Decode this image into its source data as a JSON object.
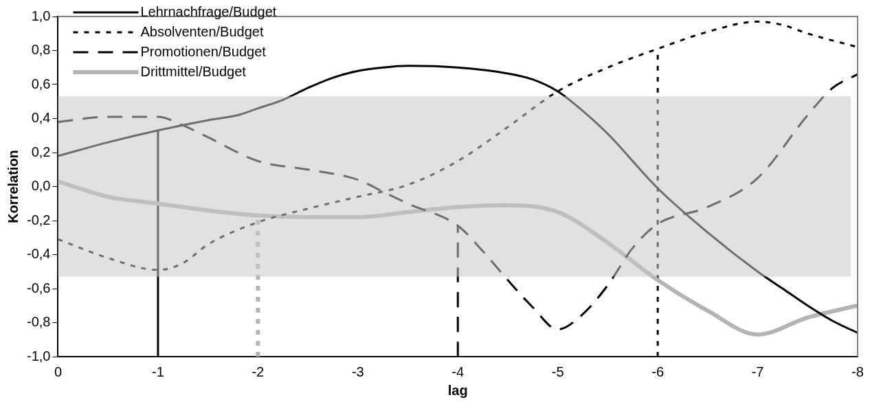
{
  "chart_data": {
    "type": "line",
    "xlabel": "lag",
    "ylabel": "Korrelation",
    "xlim": [
      0,
      -8
    ],
    "xticks": [
      0,
      -1,
      -2,
      -3,
      -4,
      -5,
      -6,
      -7,
      -8
    ],
    "ylim": [
      -1,
      1
    ],
    "yticks": [
      {
        "value": -1,
        "label": "-1,0"
      },
      {
        "value": -0.8,
        "label": "-0,8"
      },
      {
        "value": -0.6,
        "label": "-0,6"
      },
      {
        "value": -0.4,
        "label": "-0,4"
      },
      {
        "value": -0.2,
        "label": "-0,2"
      },
      {
        "value": 0,
        "label": "0,0"
      },
      {
        "value": 0.2,
        "label": "0,2"
      },
      {
        "value": 0.4,
        "label": "0,4"
      },
      {
        "value": 0.6,
        "label": "0,6"
      },
      {
        "value": 0.8,
        "label": "0,8"
      },
      {
        "value": 1,
        "label": "1,0"
      }
    ],
    "grid": false,
    "legend": "top left",
    "marker": "none",
    "bands": [
      {
        "axis": "y",
        "from": -0.53,
        "to": 0.53,
        "color": "#c8c8c8"
      }
    ],
    "series": [
      {
        "name": "Lehrnachfrage/Budget",
        "color": "#000000",
        "line_style": "solid",
        "x": [
          0,
          -0.5,
          -1,
          -1.5,
          -1.8,
          -2,
          -2.25,
          -2.5,
          -2.75,
          -3,
          -3.25,
          -3.5,
          -4,
          -4.5,
          -4.75,
          -5,
          -5.25,
          -5.5,
          -6,
          -6.5,
          -7,
          -7.25,
          -7.5,
          -7.75,
          -8
        ],
        "values": [
          0.18,
          0.26,
          0.33,
          0.39,
          0.42,
          0.46,
          0.51,
          0.58,
          0.64,
          0.68,
          0.7,
          0.71,
          0.7,
          0.665,
          0.63,
          0.56,
          0.445,
          0.31,
          -0.01,
          -0.27,
          -0.5,
          -0.6,
          -0.7,
          -0.79,
          -0.86
        ]
      },
      {
        "name": "Absolventen/Budget",
        "color": "#000000",
        "line_style": "dotted",
        "x": [
          0,
          -0.5,
          -1,
          -1.25,
          -1.5,
          -2,
          -2.5,
          -3,
          -3.5,
          -4,
          -4.5,
          -5,
          -5.5,
          -6,
          -6.5,
          -7,
          -7.25,
          -7.5,
          -8
        ],
        "values": [
          -0.31,
          -0.42,
          -0.49,
          -0.45,
          -0.34,
          -0.21,
          -0.13,
          -0.06,
          0.01,
          0.15,
          0.35,
          0.56,
          0.7,
          0.81,
          0.91,
          0.97,
          0.95,
          0.9,
          0.82
        ]
      },
      {
        "name": "Promotionen/Budget",
        "color": "#000000",
        "line_style": "dashed",
        "x": [
          0,
          -0.5,
          -1,
          -1.25,
          -1.5,
          -2,
          -2.5,
          -3,
          -3.25,
          -3.5,
          -4,
          -4.25,
          -4.5,
          -4.75,
          -5,
          -5.25,
          -5.5,
          -5.75,
          -6,
          -6.5,
          -7,
          -7.5,
          -7.75,
          -8
        ],
        "values": [
          0.38,
          0.41,
          0.41,
          0.36,
          0.29,
          0.15,
          0.1,
          0.04,
          -0.03,
          -0.1,
          -0.23,
          -0.38,
          -0.55,
          -0.71,
          -0.84,
          -0.75,
          -0.58,
          -0.36,
          -0.22,
          -0.12,
          0.05,
          0.42,
          0.58,
          0.66
        ]
      },
      {
        "name": "Drittmittel/Budget",
        "color": "#b4b4b4",
        "line_style": "solid",
        "x": [
          0,
          -0.5,
          -1,
          -1.5,
          -2,
          -2.5,
          -3,
          -3.5,
          -4,
          -4.5,
          -5,
          -5.5,
          -6,
          -6.5,
          -7,
          -7.5,
          -8
        ],
        "values": [
          0.03,
          -0.06,
          -0.1,
          -0.14,
          -0.17,
          -0.18,
          -0.18,
          -0.15,
          -0.12,
          -0.11,
          -0.15,
          -0.33,
          -0.55,
          -0.73,
          -0.87,
          -0.77,
          -0.7
        ]
      },
      {
        "color": "#000000",
        "line_style": "solid",
        "x": [
          -1,
          -1
        ],
        "values": [
          -1,
          0.33
        ]
      },
      {
        "color": "#b4b4b4",
        "line_style": "dotted",
        "x": [
          -2,
          -2
        ],
        "values": [
          -1,
          -0.17
        ]
      },
      {
        "color": "#000000",
        "line_style": "dashed",
        "x": [
          -4,
          -4
        ],
        "values": [
          -1,
          -0.23
        ]
      },
      {
        "color": "#000000",
        "line_style": "dotted",
        "x": [
          -6,
          -6
        ],
        "values": [
          -1,
          0.81
        ]
      }
    ]
  }
}
